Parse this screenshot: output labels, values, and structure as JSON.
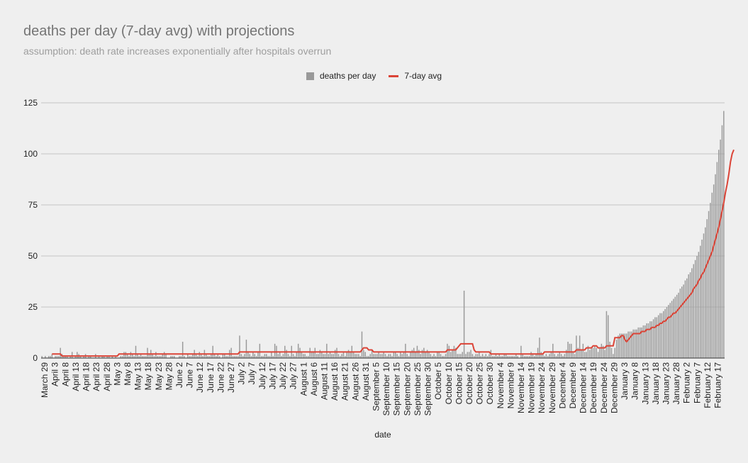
{
  "chart_data": {
    "type": "bar",
    "title": "deaths per day (7-day avg) with projections",
    "subtitle": "assumption: death rate increases exponentially after hospitals overrun",
    "xlabel": "date",
    "ylabel": "",
    "ylim": [
      0,
      125
    ],
    "yticks": [
      0,
      25,
      50,
      75,
      100,
      125
    ],
    "grid": true,
    "legend_position": "top-center",
    "series": [
      {
        "name": "deaths per day",
        "type": "bar",
        "color": "#999999"
      },
      {
        "name": "7-day avg",
        "type": "line",
        "color": "#db4437"
      }
    ],
    "categories": [
      "March 29",
      "April 3",
      "April 8",
      "April 13",
      "April 18",
      "April 23",
      "April 28",
      "May 3",
      "May 8",
      "May 13",
      "May 18",
      "May 23",
      "May 28",
      "June 2",
      "June 7",
      "June 12",
      "June 17",
      "June 22",
      "June 27",
      "July 2",
      "July 7",
      "July 12",
      "July 17",
      "July 22",
      "July 27",
      "August 1",
      "August 6",
      "August 11",
      "August 16",
      "August 21",
      "August 26",
      "August 31",
      "September 5",
      "September 10",
      "September 15",
      "September 20",
      "September 25",
      "September 30",
      "October 5",
      "October 10",
      "October 15",
      "October 20",
      "October 25",
      "October 30",
      "November 4",
      "November 9",
      "November 14",
      "November 19",
      "November 24",
      "November 29",
      "December 4",
      "December 9",
      "December 14",
      "December 19",
      "December 24",
      "December 29",
      "January 3",
      "January 8",
      "January 13",
      "January 18",
      "January 23",
      "January 28",
      "February 2",
      "February 7",
      "February 12",
      "February 17"
    ],
    "deaths_per_day": [
      1,
      0,
      1,
      0,
      1,
      1,
      2,
      0,
      1,
      1,
      1,
      5,
      2,
      1,
      1,
      1,
      0,
      1,
      3,
      0,
      1,
      3,
      2,
      1,
      0,
      1,
      2,
      0,
      1,
      1,
      0,
      0,
      2,
      0,
      1,
      0,
      1,
      1,
      0,
      1,
      1,
      0,
      1,
      0,
      1,
      0,
      0,
      1,
      1,
      3,
      3,
      2,
      1,
      3,
      2,
      1,
      6,
      2,
      1,
      2,
      1,
      1,
      1,
      5,
      2,
      4,
      2,
      1,
      3,
      1,
      1,
      1,
      2,
      3,
      2,
      0,
      0,
      1,
      1,
      1,
      0,
      0,
      1,
      1,
      8,
      1,
      0,
      2,
      1,
      1,
      2,
      4,
      2,
      1,
      3,
      2,
      1,
      4,
      2,
      1,
      1,
      2,
      6,
      2,
      1,
      2,
      1,
      0,
      2,
      2,
      1,
      1,
      4,
      5,
      1,
      1,
      1,
      1,
      11,
      2,
      1,
      2,
      9,
      3,
      2,
      1,
      3,
      2,
      1,
      3,
      7,
      1,
      1,
      2,
      2,
      1,
      1,
      3,
      1,
      7,
      6,
      2,
      3,
      1,
      2,
      6,
      4,
      2,
      1,
      6,
      2,
      1,
      3,
      7,
      5,
      3,
      2,
      2,
      1,
      1,
      5,
      3,
      3,
      5,
      2,
      2,
      4,
      3,
      2,
      2,
      7,
      2,
      3,
      2,
      2,
      4,
      5,
      2,
      1,
      2,
      3,
      1,
      3,
      4,
      3,
      6,
      3,
      2,
      2,
      2,
      1,
      13,
      4,
      3,
      1,
      1,
      2,
      4,
      2,
      2,
      2,
      3,
      2,
      2,
      3,
      2,
      1,
      2,
      2,
      1,
      3,
      3,
      2,
      1,
      3,
      2,
      3,
      7,
      2,
      1,
      3,
      4,
      5,
      3,
      6,
      4,
      2,
      4,
      5,
      3,
      4,
      3,
      2,
      1,
      2,
      1,
      3,
      3,
      2,
      1,
      1,
      2,
      7,
      6,
      3,
      4,
      6,
      5,
      2,
      2,
      2,
      3,
      33,
      2,
      3,
      3,
      4,
      2,
      1,
      2,
      2,
      3,
      1,
      2,
      1,
      2,
      1,
      2,
      4,
      1,
      1,
      2,
      1,
      2,
      1,
      1,
      2,
      2,
      1,
      1,
      1,
      1,
      1,
      2,
      1,
      0,
      6,
      2,
      1,
      1,
      1,
      1,
      3,
      2,
      1,
      2,
      5,
      10,
      3,
      2,
      1,
      2,
      1,
      2,
      3,
      7,
      2,
      1,
      2,
      3,
      2,
      1,
      2,
      4,
      8,
      7,
      7,
      3,
      2,
      11,
      5,
      11,
      4,
      7,
      3,
      3,
      6,
      4,
      5,
      5,
      6,
      5,
      3,
      5,
      7,
      6,
      4,
      23,
      21,
      8,
      5,
      2,
      5,
      9,
      11,
      12,
      12,
      12,
      12,
      12,
      13,
      13,
      13,
      14,
      14,
      14,
      15,
      15,
      15,
      16,
      16,
      17,
      17,
      18,
      18,
      19,
      20,
      20,
      21,
      22,
      22,
      23,
      24,
      25,
      26,
      27,
      28,
      29,
      30,
      31,
      32,
      34,
      35,
      36,
      38,
      39,
      41,
      42,
      44,
      46,
      48,
      50,
      52,
      55,
      58,
      61,
      64,
      68,
      72,
      76,
      81,
      85,
      90,
      96,
      102,
      107,
      114,
      121
    ],
    "seven_day_avg": [
      1,
      1,
      1,
      2,
      2,
      2,
      2,
      2,
      2,
      2,
      2,
      2,
      1,
      1,
      1,
      1,
      1,
      1,
      1,
      1,
      1,
      1,
      1,
      1,
      1,
      1,
      1,
      1,
      1,
      1,
      1,
      1,
      1,
      1,
      1,
      1,
      1,
      1,
      1,
      1,
      1,
      1,
      1,
      1,
      1,
      1,
      2,
      2,
      2,
      2,
      2,
      2,
      2,
      2,
      2,
      2,
      2,
      2,
      2,
      2,
      2,
      2,
      2,
      2,
      2,
      2,
      2,
      2,
      2,
      2,
      2,
      2,
      2,
      2,
      2,
      2,
      2,
      2,
      2,
      2,
      2,
      2,
      2,
      2,
      2,
      2,
      2,
      2,
      2,
      2,
      2,
      2,
      2,
      2,
      2,
      2,
      2,
      2,
      2,
      2,
      2,
      2,
      2,
      2,
      2,
      2,
      2,
      2,
      2,
      2,
      2,
      2,
      2,
      2,
      2,
      2,
      2,
      2,
      3,
      3,
      3,
      3,
      3,
      3,
      3,
      3,
      3,
      3,
      3,
      3,
      3,
      3,
      3,
      3,
      3,
      3,
      3,
      3,
      3,
      3,
      3,
      3,
      3,
      3,
      3,
      3,
      3,
      3,
      3,
      3,
      3,
      3,
      3,
      3,
      3,
      3,
      3,
      3,
      3,
      3,
      3,
      3,
      3,
      3,
      3,
      3,
      3,
      3,
      3,
      3,
      3,
      3,
      3,
      3,
      3,
      3,
      3,
      3,
      3,
      3,
      3,
      3,
      3,
      3,
      3,
      3,
      3,
      3,
      3,
      3,
      3,
      4,
      5,
      5,
      5,
      4,
      4,
      4,
      3,
      3,
      3,
      3,
      3,
      3,
      3,
      3,
      3,
      3,
      3,
      3,
      3,
      3,
      3,
      3,
      3,
      3,
      3,
      3,
      3,
      3,
      3,
      3,
      3,
      3,
      3,
      3,
      3,
      3,
      3,
      3,
      3,
      3,
      3,
      3,
      3,
      3,
      3,
      3,
      3,
      3,
      3,
      3,
      4,
      4,
      4,
      4,
      4,
      4,
      5,
      6,
      7,
      7,
      7,
      7,
      7,
      7,
      7,
      7,
      4,
      3,
      3,
      3,
      3,
      3,
      3,
      3,
      3,
      3,
      2,
      2,
      2,
      2,
      2,
      2,
      2,
      2,
      2,
      2,
      2,
      2,
      2,
      2,
      2,
      2,
      2,
      2,
      2,
      2,
      2,
      2,
      2,
      2,
      2,
      2,
      2,
      2,
      2,
      2,
      2,
      2,
      3,
      3,
      3,
      3,
      3,
      3,
      3,
      3,
      3,
      3,
      3,
      3,
      3,
      3,
      3,
      3,
      3,
      3,
      3,
      4,
      4,
      4,
      4,
      4,
      4,
      5,
      5,
      5,
      5,
      6,
      6,
      6,
      5,
      5,
      5,
      5,
      5,
      6,
      6,
      6,
      6,
      6,
      10,
      10,
      10,
      10,
      11,
      11,
      9,
      8,
      9,
      10,
      11,
      12,
      12,
      12,
      12,
      12,
      13,
      13,
      13,
      14,
      14,
      14,
      15,
      15,
      15,
      16,
      16,
      17,
      17,
      18,
      18,
      19,
      20,
      20,
      21,
      22,
      22,
      23,
      24,
      25,
      26,
      27,
      28,
      29,
      30,
      31,
      32,
      34,
      35,
      36,
      38,
      39,
      41,
      42,
      44,
      46,
      48,
      50,
      52,
      55,
      58,
      61,
      64,
      68,
      72,
      76,
      81,
      85,
      90,
      96,
      100,
      102
    ]
  }
}
